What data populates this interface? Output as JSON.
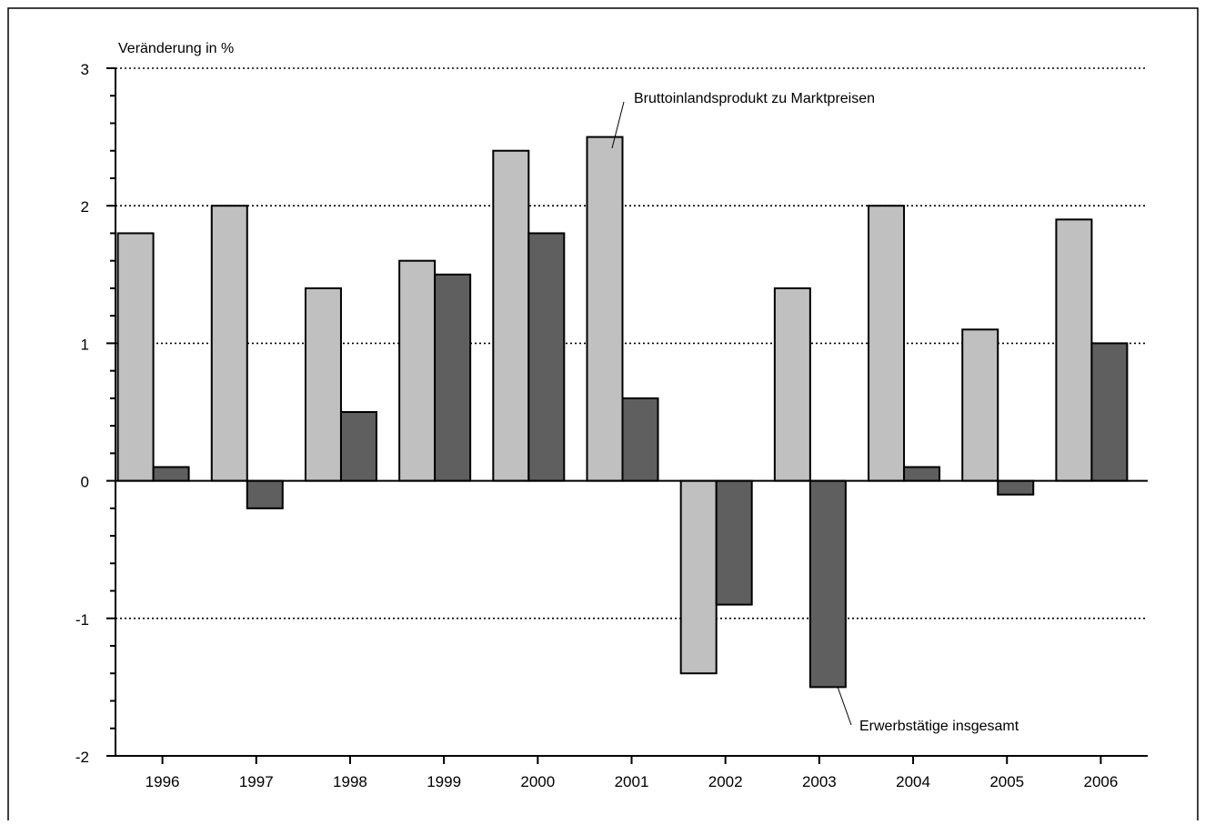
{
  "chart_data": {
    "type": "bar",
    "ylabel": "Veränderung in %",
    "ylim": [
      -2,
      3
    ],
    "yticks": [
      "3",
      "2",
      "1",
      "0",
      "-1",
      "-2"
    ],
    "ytick_values": [
      3,
      2,
      1,
      0,
      -1,
      -2
    ],
    "grid": "horizontal dotted at major ticks",
    "categories": [
      "1996",
      "1997",
      "1998",
      "1999",
      "2000",
      "2001",
      "2002",
      "2003",
      "2004",
      "2005",
      "2006"
    ],
    "series": [
      {
        "name": "Bruttoinlandsprodukt zu Marktpreisen",
        "color": "#c0c0c0",
        "values": [
          1.8,
          2.0,
          1.4,
          1.6,
          2.4,
          2.5,
          -1.4,
          1.4,
          2.0,
          1.1,
          1.9
        ]
      },
      {
        "name": "Erwerbstätige insgesamt",
        "color": "#5f5f5f",
        "values": [
          0.1,
          -0.2,
          0.5,
          1.5,
          1.8,
          0.6,
          -0.9,
          -1.5,
          0.1,
          -0.1,
          1.0
        ]
      }
    ]
  }
}
